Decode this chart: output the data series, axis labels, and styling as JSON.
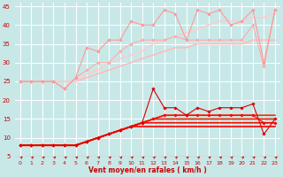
{
  "xlabel": "Vent moyen/en rafales ( km/h )",
  "xlim": [
    -0.5,
    23.5
  ],
  "ylim": [
    5,
    46
  ],
  "yticks": [
    5,
    10,
    15,
    20,
    25,
    30,
    35,
    40,
    45
  ],
  "xticks": [
    0,
    1,
    2,
    3,
    4,
    5,
    6,
    7,
    8,
    9,
    10,
    11,
    12,
    13,
    14,
    15,
    16,
    17,
    18,
    19,
    20,
    21,
    22,
    23
  ],
  "background_color": "#c8e8e8",
  "grid_color": "#ffffff",
  "series": [
    {
      "x": [
        0,
        1,
        2,
        3,
        4,
        5,
        6,
        7,
        8,
        9,
        10,
        11,
        12,
        13,
        14,
        15,
        16,
        17,
        18,
        19,
        20,
        21,
        22,
        23
      ],
      "y": [
        8,
        8,
        8,
        8,
        8,
        8,
        9,
        10,
        11,
        12,
        13,
        14,
        15,
        16,
        16,
        16,
        16,
        16,
        16,
        16,
        16,
        16,
        14,
        14
      ],
      "color": "#ff0000",
      "lw": 0.8,
      "marker": "D",
      "ms": 1.8
    },
    {
      "x": [
        0,
        1,
        2,
        3,
        4,
        5,
        6,
        7,
        8,
        9,
        10,
        11,
        12,
        13,
        14,
        15,
        16,
        17,
        18,
        19,
        20,
        21,
        22,
        23
      ],
      "y": [
        8,
        8,
        8,
        8,
        8,
        8,
        9,
        10,
        11,
        12,
        13,
        13,
        13,
        13,
        13,
        13,
        13,
        13,
        13,
        13,
        13,
        13,
        13,
        13
      ],
      "color": "#ff0000",
      "lw": 1.2,
      "marker": null,
      "ms": 0
    },
    {
      "x": [
        0,
        1,
        2,
        3,
        4,
        5,
        6,
        7,
        8,
        9,
        10,
        11,
        12,
        13,
        14,
        15,
        16,
        17,
        18,
        19,
        20,
        21,
        22,
        23
      ],
      "y": [
        8,
        8,
        8,
        8,
        8,
        8,
        9,
        10,
        11,
        12,
        13,
        14,
        23,
        18,
        18,
        16,
        18,
        17,
        18,
        18,
        18,
        19,
        11,
        15
      ],
      "color": "#dd0000",
      "lw": 0.8,
      "marker": "D",
      "ms": 1.8
    },
    {
      "x": [
        0,
        1,
        2,
        3,
        4,
        5,
        6,
        7,
        8,
        9,
        10,
        11,
        12,
        13,
        14,
        15,
        16,
        17,
        18,
        19,
        20,
        21,
        22,
        23
      ],
      "y": [
        8,
        8,
        8,
        8,
        8,
        8,
        9,
        10,
        11,
        12,
        13,
        14,
        14,
        14,
        14,
        14,
        14,
        14,
        14,
        14,
        14,
        14,
        14,
        14
      ],
      "color": "#ee1100",
      "lw": 1.2,
      "marker": null,
      "ms": 0
    },
    {
      "x": [
        0,
        1,
        2,
        3,
        4,
        5,
        6,
        7,
        8,
        9,
        10,
        11,
        12,
        13,
        14,
        15,
        16,
        17,
        18,
        19,
        20,
        21,
        22,
        23
      ],
      "y": [
        8,
        8,
        8,
        8,
        8,
        8,
        9,
        10,
        11,
        12,
        13,
        14,
        15,
        15,
        15,
        15,
        15,
        15,
        15,
        15,
        15,
        15,
        15,
        15
      ],
      "color": "#ee2200",
      "lw": 1.2,
      "marker": null,
      "ms": 0
    },
    {
      "x": [
        0,
        1,
        2,
        3,
        4,
        5,
        6,
        7,
        8,
        9,
        10,
        11,
        12,
        13,
        14,
        15,
        16,
        17,
        18,
        19,
        20,
        21,
        22,
        23
      ],
      "y": [
        8,
        8,
        8,
        8,
        8,
        8,
        9,
        10,
        11,
        12,
        13,
        14,
        15,
        16,
        16,
        16,
        16,
        16,
        16,
        16,
        16,
        16,
        16,
        16
      ],
      "color": "#ee3300",
      "lw": 1.2,
      "marker": null,
      "ms": 0
    },
    {
      "x": [
        0,
        1,
        2,
        3,
        4,
        5,
        6,
        7,
        8,
        9,
        10,
        11,
        12,
        13,
        14,
        15,
        16,
        17,
        18,
        19,
        20,
        21,
        22,
        23
      ],
      "y": [
        25,
        25,
        25,
        25,
        23,
        26,
        28,
        30,
        30,
        33,
        35,
        36,
        36,
        36,
        37,
        36,
        36,
        36,
        36,
        36,
        36,
        40,
        29,
        44
      ],
      "color": "#ffaaaa",
      "lw": 0.8,
      "marker": "D",
      "ms": 1.8
    },
    {
      "x": [
        0,
        1,
        2,
        3,
        4,
        5,
        6,
        7,
        8,
        9,
        10,
        11,
        12,
        13,
        14,
        15,
        16,
        17,
        18,
        19,
        20,
        21,
        22,
        23
      ],
      "y": [
        25,
        25,
        25,
        25,
        25,
        25,
        26,
        27,
        28,
        29,
        30,
        31,
        32,
        33,
        34,
        34,
        35,
        35,
        35,
        35,
        35,
        36,
        36,
        36
      ],
      "color": "#ffbbbb",
      "lw": 1.2,
      "marker": null,
      "ms": 0
    },
    {
      "x": [
        0,
        1,
        2,
        3,
        4,
        5,
        6,
        7,
        8,
        9,
        10,
        11,
        12,
        13,
        14,
        15,
        16,
        17,
        18,
        19,
        20,
        21,
        22,
        23
      ],
      "y": [
        25,
        25,
        25,
        25,
        23,
        26,
        34,
        33,
        36,
        36,
        41,
        40,
        40,
        44,
        43,
        36,
        44,
        43,
        44,
        40,
        41,
        44,
        30,
        44
      ],
      "color": "#ff9999",
      "lw": 0.8,
      "marker": "D",
      "ms": 1.8
    },
    {
      "x": [
        0,
        1,
        2,
        3,
        4,
        5,
        6,
        7,
        8,
        9,
        10,
        11,
        12,
        13,
        14,
        15,
        16,
        17,
        18,
        19,
        20,
        21,
        22,
        23
      ],
      "y": [
        25,
        25,
        25,
        25,
        25,
        25,
        27,
        28,
        30,
        31,
        32,
        33,
        35,
        36,
        37,
        38,
        39,
        40,
        41,
        41,
        41,
        42,
        42,
        43
      ],
      "color": "#ffcccc",
      "lw": 1.2,
      "marker": null,
      "ms": 0
    }
  ],
  "arrow_color": "#cc0000",
  "xlabel_fontsize": 5.5,
  "xlabel_fontweight": "bold",
  "tick_labelsize": 4.5,
  "ytick_labelsize": 5.0
}
